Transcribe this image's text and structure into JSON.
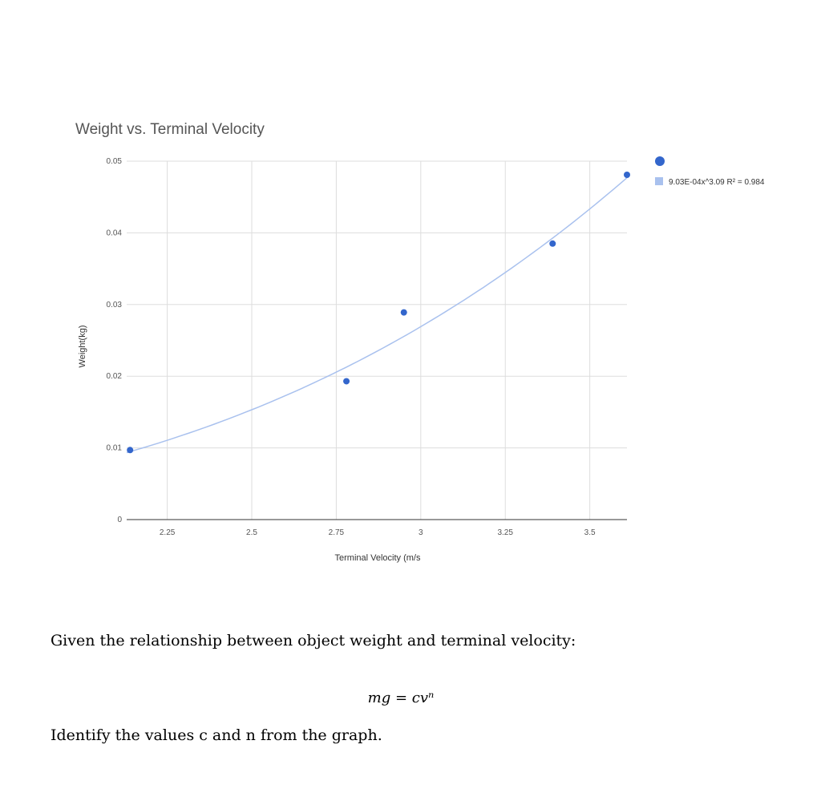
{
  "chart_data": {
    "type": "scatter",
    "title": "Weight vs. Terminal Velocity",
    "xlabel": "Terminal Velocity (m/s",
    "ylabel": "Weight(kg)",
    "xlim": [
      2.13,
      3.61
    ],
    "ylim": [
      0,
      0.05
    ],
    "x_ticks": [
      2.25,
      2.5,
      2.75,
      3,
      3.25,
      3.5
    ],
    "x_tick_labels": [
      "2.25",
      "2.5",
      "2.75",
      "3",
      "3.25",
      "3.5"
    ],
    "y_ticks": [
      0,
      0.01,
      0.02,
      0.03,
      0.04,
      0.05
    ],
    "y_tick_labels": [
      "0",
      "0.01",
      "0.02",
      "0.03",
      "0.04",
      "0.05"
    ],
    "grid": true,
    "legend_position": "right",
    "series": [
      {
        "points": [
          {
            "x": 2.14,
            "y": 0.0097
          },
          {
            "x": 2.78,
            "y": 0.0193
          },
          {
            "x": 2.95,
            "y": 0.0289
          },
          {
            "x": 3.39,
            "y": 0.0385
          },
          {
            "x": 3.61,
            "y": 0.0481
          }
        ],
        "color": "#3366cc"
      }
    ],
    "trendline": {
      "type": "power",
      "coefficient": 0.000903,
      "exponent": 3.09,
      "label": "9.03E-04x^3.09 R² = 0.984",
      "color": "#a9c1ee"
    }
  },
  "question": {
    "intro": "Given the relationship between object weight and terminal velocity:",
    "equation": "mg = cvⁿ",
    "task": "Identify the values c and n from the graph."
  }
}
